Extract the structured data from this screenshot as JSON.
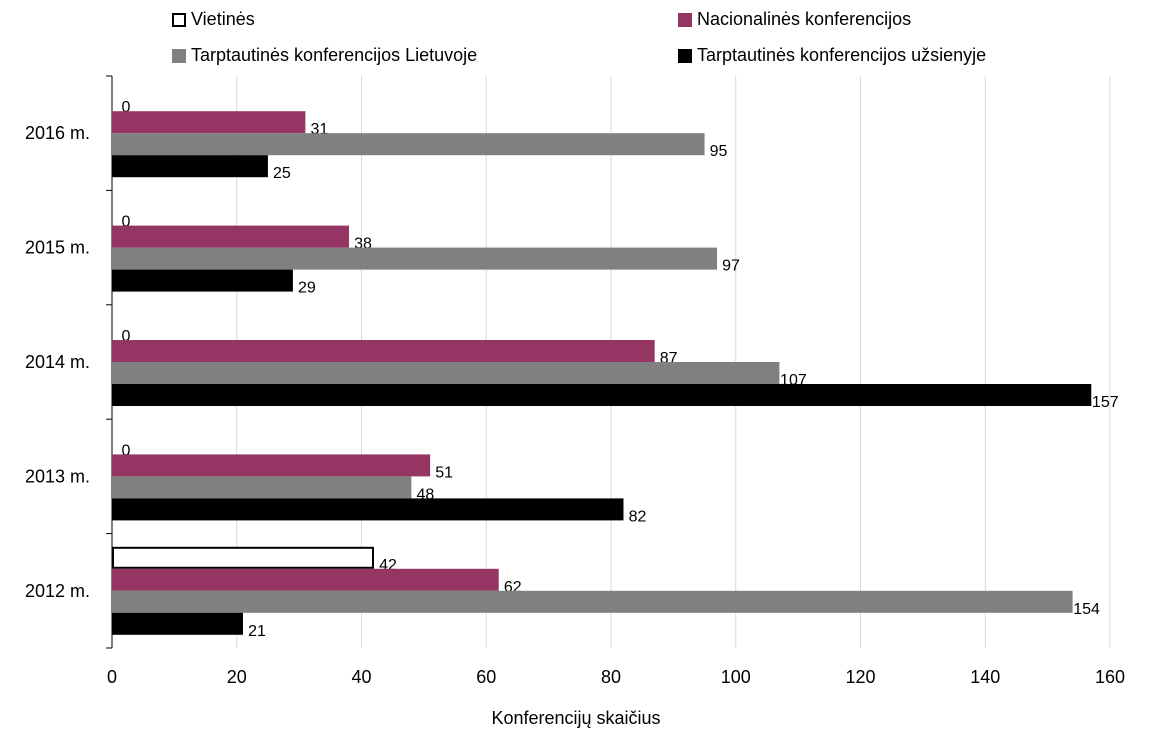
{
  "chart_data": {
    "type": "bar",
    "orientation": "horizontal",
    "categories": [
      "2016 m.",
      "2015 m.",
      "2014 m.",
      "2013 m.",
      "2012 m."
    ],
    "series": [
      {
        "name": "Vietinės",
        "color": "#ffffff",
        "border": "#000000",
        "values": [
          0,
          0,
          0,
          0,
          42
        ]
      },
      {
        "name": "Nacionalinės konferencijos",
        "color": "#943564",
        "values": [
          31,
          38,
          87,
          51,
          62
        ]
      },
      {
        "name": "Tarptautinės konferencijos Lietuvoje",
        "color": "#808080",
        "values": [
          95,
          97,
          107,
          48,
          154
        ]
      },
      {
        "name": "Tarptautinės konferencijos užsienyje",
        "color": "#000000",
        "values": [
          25,
          29,
          157,
          82,
          21
        ]
      }
    ],
    "xlabel": "Konferencijų skaičius",
    "ylabel": "",
    "xlim": [
      0,
      160
    ],
    "xticks": [
      0,
      20,
      40,
      60,
      80,
      100,
      120,
      140,
      160
    ],
    "grid": true,
    "legend_position": "top"
  }
}
